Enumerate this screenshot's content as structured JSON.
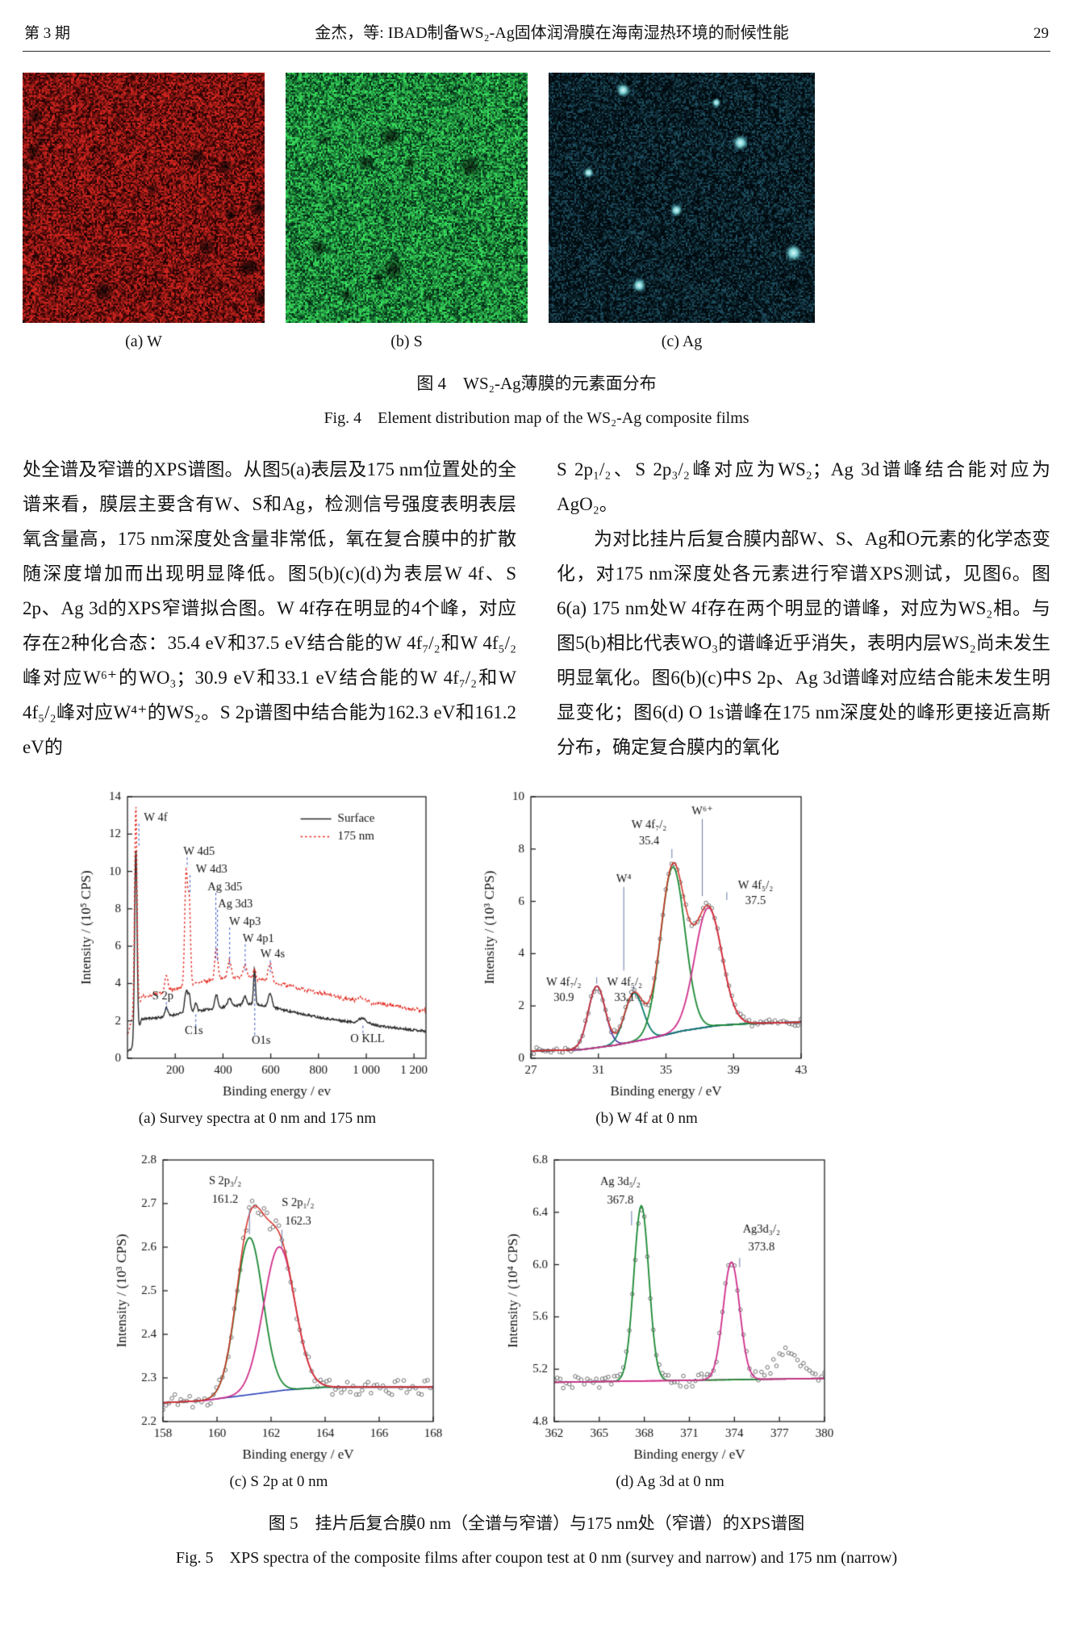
{
  "page": {
    "issue": "第 3 期",
    "running_title": "金杰，等: IBAD制备WS₂-Ag固体润滑膜在海南湿热环境的耐候性能",
    "page_number": "29"
  },
  "figure4": {
    "panels": [
      {
        "label": "(a) W",
        "kind": "red",
        "color": "#c03122",
        "dark_blobs": 16
      },
      {
        "label": "(b) S",
        "kind": "green",
        "color": "#35c152",
        "dark_blobs": 10
      },
      {
        "label": "(c) Ag",
        "kind": "cyan",
        "color": "#bdecef",
        "spots": [
          [
            0.28,
            0.07,
            9
          ],
          [
            0.63,
            0.12,
            6
          ],
          [
            0.72,
            0.28,
            10
          ],
          [
            0.15,
            0.4,
            7
          ],
          [
            0.48,
            0.55,
            8
          ],
          [
            0.92,
            0.72,
            11
          ],
          [
            0.34,
            0.85,
            9
          ]
        ]
      }
    ],
    "caption_zh": "图 4　WS₂-Ag薄膜的元素面分布",
    "caption_en": "Fig. 4　Element distribution map of the WS₂-Ag composite films"
  },
  "body": {
    "left_p1": "处全谱及窄谱的XPS谱图。从图5(a)表层及175 nm位置处的全谱来看，膜层主要含有W、S和Ag，检测信号强度表明表层氧含量高，175 nm深度处含量非常低，氧在复合膜中的扩散随深度增加而出现明显降低。图5(b)(c)(d)为表层W 4f、S 2p、Ag 3d的XPS窄谱拟合图。W 4f存在明显的4个峰，对应存在2种化合态：35.4 eV和37.5 eV结合能的W 4f₇/₂和W 4f₅/₂峰对应W⁶⁺的WO₃；30.9 eV和33.1 eV结合能的W 4f₇/₂和W 4f₅/₂峰对应W⁴⁺的WS₂。S 2p谱图中结合能为162.3 eV和161.2 eV的",
    "right_p1": "S 2p₁/₂、S 2p₃/₂峰对应为WS₂；Ag 3d谱峰结合能对应为AgO₂。",
    "right_p2": "为对比挂片后复合膜内部W、S、Ag和O元素的化学态变化，对175 nm深度处各元素进行窄谱XPS测试，见图6。图6(a) 175 nm处W 4f存在两个明显的谱峰，对应为WS₂相。与图5(b)相比代表WO₃的谱峰近乎消失，表明内层WS₂尚未发生明显氧化。图6(b)(c)中S 2p、Ag 3d谱峰对应结合能未发生明显变化；图6(d) O 1s谱峰在175 nm深度处的峰形更接近高斯分布，确定复合膜内的氧化"
  },
  "figure5": {
    "caption_zh": "图 5　挂片后复合膜0 nm（全谱与窄谱）与175 nm处（窄谱）的XPS谱图",
    "caption_en": "Fig. 5　XPS spectra of the composite films after coupon test at 0 nm (survey and narrow) and 175 nm (narrow)"
  },
  "chart_data": [
    {
      "id": "chart-a",
      "type": "line",
      "caption": "(a) Survey spectra at 0 nm and 175 nm",
      "xlabel": "Binding energy / ev",
      "ylabel": "Intensity / (10⁵ CPS)",
      "xlim": [
        0,
        1250
      ],
      "ylim": [
        0,
        14
      ],
      "xticks": [
        {
          "v": 200,
          "l": "200"
        },
        {
          "v": 400,
          "l": "400"
        },
        {
          "v": 600,
          "l": "600"
        },
        {
          "v": 800,
          "l": "800"
        },
        {
          "v": 1000,
          "l": "1 000"
        },
        {
          "v": 1200,
          "l": "1 200"
        }
      ],
      "yticks": [
        {
          "v": 0,
          "l": "0"
        },
        {
          "v": 2,
          "l": "2"
        },
        {
          "v": 4,
          "l": "4"
        },
        {
          "v": 6,
          "l": "6"
        },
        {
          "v": 8,
          "l": "8"
        },
        {
          "v": 10,
          "l": "10"
        },
        {
          "v": 12,
          "l": "12"
        },
        {
          "v": 14,
          "l": "14"
        }
      ],
      "legend": {
        "fx": 0.58,
        "fy": 0.06,
        "entries": [
          {
            "label": "Surface",
            "color": "#2b2b2b",
            "dash": "solid"
          },
          {
            "label": "175 nm",
            "color": "#e1251b",
            "dash": "dot"
          }
        ]
      },
      "series": [
        {
          "name": "Surface",
          "color": "#2b2b2b",
          "dash": "solid",
          "noise": 0.06,
          "seed": 11,
          "baseline": [
            [
              0,
              0.35
            ],
            [
              25,
              0.6
            ],
            [
              60,
              2.1
            ],
            [
              150,
              2.2
            ],
            [
              240,
              2.45
            ],
            [
              330,
              2.6
            ],
            [
              430,
              2.8
            ],
            [
              520,
              2.9
            ],
            [
              600,
              2.75
            ],
            [
              700,
              2.45
            ],
            [
              800,
              2.2
            ],
            [
              900,
              2.0
            ],
            [
              1000,
              1.85
            ],
            [
              1100,
              1.65
            ],
            [
              1250,
              1.45
            ]
          ],
          "peaks": [
            {
              "c": 35,
              "h": 10.2,
              "w": 5
            },
            {
              "c": 163,
              "h": 0.5,
              "w": 6
            },
            {
              "c": 246,
              "h": 1.15,
              "w": 6
            },
            {
              "c": 259,
              "h": 0.85,
              "w": 5
            },
            {
              "c": 286,
              "h": 0.45,
              "w": 5
            },
            {
              "c": 369,
              "h": 0.5,
              "w": 5
            },
            {
              "c": 376,
              "h": 0.4,
              "w": 5
            },
            {
              "c": 427,
              "h": 0.45,
              "w": 7
            },
            {
              "c": 492,
              "h": 0.42,
              "w": 7
            },
            {
              "c": 532,
              "h": 1.95,
              "w": 4
            },
            {
              "c": 597,
              "h": 0.7,
              "w": 8
            },
            {
              "c": 985,
              "h": 0.28,
              "w": 16
            }
          ]
        },
        {
          "name": "175 nm",
          "color": "#e1251b",
          "dash": "dot",
          "noise": 0.09,
          "seed": 22,
          "baseline": [
            [
              0,
              1.3
            ],
            [
              25,
              2.3
            ],
            [
              60,
              3.3
            ],
            [
              150,
              3.55
            ],
            [
              240,
              3.85
            ],
            [
              330,
              4.15
            ],
            [
              430,
              4.35
            ],
            [
              520,
              4.3
            ],
            [
              600,
              4.1
            ],
            [
              700,
              3.8
            ],
            [
              800,
              3.5
            ],
            [
              900,
              3.2
            ],
            [
              1000,
              3.0
            ],
            [
              1100,
              2.8
            ],
            [
              1250,
              2.55
            ]
          ],
          "peaks": [
            {
              "c": 35,
              "h": 11.0,
              "w": 5
            },
            {
              "c": 163,
              "h": 0.9,
              "w": 6
            },
            {
              "c": 246,
              "h": 6.2,
              "w": 6
            },
            {
              "c": 259,
              "h": 4.2,
              "w": 5
            },
            {
              "c": 369,
              "h": 1.15,
              "w": 5
            },
            {
              "c": 376,
              "h": 0.95,
              "w": 5
            },
            {
              "c": 427,
              "h": 0.85,
              "w": 7
            },
            {
              "c": 492,
              "h": 0.7,
              "w": 7
            },
            {
              "c": 532,
              "h": 0.55,
              "w": 5
            },
            {
              "c": 597,
              "h": 0.95,
              "w": 8
            },
            {
              "c": 985,
              "h": 0.22,
              "w": 16
            }
          ]
        }
      ],
      "ann_color": "#3a57c8",
      "ann_dash": "dot",
      "annotations": [
        {
          "text": "W 4f",
          "x": 118,
          "y": 12.85
        },
        {
          "text": "W 4d5",
          "x": 300,
          "y": 11.05
        },
        {
          "text": "W 4d3",
          "x": 352,
          "y": 10.1
        },
        {
          "text": "Ag 3d5",
          "x": 408,
          "y": 9.15
        },
        {
          "text": "Ag 3d3",
          "x": 452,
          "y": 8.25
        },
        {
          "text": "W 4p3",
          "x": 492,
          "y": 7.3
        },
        {
          "text": "W 4p1",
          "x": 548,
          "y": 6.4
        },
        {
          "text": "W 4s",
          "x": 608,
          "y": 5.55
        },
        {
          "text": "S 2p",
          "x": 148,
          "y": 3.3
        },
        {
          "text": "C1s",
          "x": 278,
          "y": 1.45
        },
        {
          "text": "O1s",
          "x": 560,
          "y": 0.95
        },
        {
          "text": "O KLL",
          "x": 1005,
          "y": 1.05
        }
      ],
      "ann_lines": [
        [
          48,
          12.55,
          48,
          11.3
        ],
        [
          250,
          10.75,
          250,
          10.2
        ],
        [
          262,
          9.8,
          262,
          8.8
        ],
        [
          370,
          8.85,
          370,
          5.35
        ],
        [
          377,
          7.95,
          377,
          5.15
        ],
        [
          428,
          7.0,
          428,
          4.85
        ],
        [
          493,
          6.1,
          493,
          4.65
        ],
        [
          598,
          5.25,
          598,
          4.45
        ],
        [
          163,
          3.0,
          163,
          2.6
        ],
        [
          286,
          1.7,
          286,
          2.45
        ],
        [
          533,
          1.25,
          533,
          4.3
        ],
        [
          986,
          1.35,
          986,
          1.8
        ]
      ]
    },
    {
      "id": "chart-b",
      "type": "scatter",
      "caption": "(b) W 4f at 0 nm",
      "xlabel": "Binding energy / eV",
      "ylabel": "Intensity / (10³ CPS)",
      "xlim": [
        27,
        43
      ],
      "ylim": [
        0,
        10
      ],
      "xticks": [
        {
          "v": 27,
          "l": "27"
        },
        {
          "v": 31,
          "l": "31"
        },
        {
          "v": 35,
          "l": "35"
        },
        {
          "v": 39,
          "l": "39"
        },
        {
          "v": 43,
          "l": "43"
        }
      ],
      "yticks": [
        {
          "v": 0,
          "l": "0"
        },
        {
          "v": 2,
          "l": "2"
        },
        {
          "v": 4,
          "l": "4"
        },
        {
          "v": 6,
          "l": "6"
        },
        {
          "v": 8,
          "l": "8"
        },
        {
          "v": 10,
          "l": "10"
        }
      ],
      "baseline": {
        "color": "#2a3fb8",
        "points": [
          [
            27,
            0.28
          ],
          [
            30,
            0.33
          ],
          [
            32,
            0.5
          ],
          [
            34,
            0.75
          ],
          [
            36,
            1.05
          ],
          [
            38,
            1.25
          ],
          [
            40,
            1.33
          ],
          [
            43,
            1.38
          ]
        ]
      },
      "components": [
        {
          "name": "W 4f₇/₂ (W⁴⁺)",
          "center": 30.9,
          "height": 2.35,
          "width": 0.5,
          "color": "#5b3da8"
        },
        {
          "name": "W 4f₅/₂ (W⁴⁺)",
          "center": 33.1,
          "height": 1.85,
          "width": 0.55,
          "color": "#0e7d6e"
        },
        {
          "name": "W 4f₇/₂ (W⁶⁺)",
          "center": 35.4,
          "height": 6.35,
          "width": 0.72,
          "color": "#1b8a34"
        },
        {
          "name": "W 4f₅/₂ (W⁶⁺)",
          "center": 37.5,
          "height": 4.55,
          "width": 0.8,
          "color": "#d0308c"
        }
      ],
      "envelope_color": "#d53026",
      "scatter": {
        "step": 0.17,
        "noise": 0.13,
        "seed": 7,
        "color": "#707070"
      },
      "ann_color": "#6b7aa8",
      "ann_dash": "solid",
      "annotations": [
        {
          "text": "W⁶⁺",
          "x": 37.15,
          "y": 9.45
        },
        {
          "text": "W 4f₇/₂",
          "x": 34.0,
          "y": 8.9
        },
        {
          "text": "35.4",
          "x": 34.0,
          "y": 8.3
        },
        {
          "text": "W 4f₅/₂",
          "x": 40.3,
          "y": 6.6
        },
        {
          "text": "37.5",
          "x": 40.3,
          "y": 6.0
        },
        {
          "text": "W⁴",
          "x": 32.5,
          "y": 6.85
        },
        {
          "text": "W 4f₇/₂",
          "x": 28.95,
          "y": 2.9
        },
        {
          "text": "30.9",
          "x": 28.95,
          "y": 2.3
        },
        {
          "text": "W 4f₅/₂",
          "x": 32.55,
          "y": 2.9
        },
        {
          "text": "33.1",
          "x": 32.55,
          "y": 2.3
        }
      ],
      "ann_lines": [
        [
          37.15,
          9.15,
          37.15,
          6.2
        ],
        [
          35.35,
          8.0,
          35.35,
          7.65
        ],
        [
          38.6,
          6.35,
          38.6,
          6.05
        ],
        [
          32.5,
          6.55,
          32.5,
          3.35
        ],
        [
          30.9,
          3.1,
          30.9,
          2.85
        ],
        [
          33.1,
          2.75,
          33.1,
          2.55
        ]
      ]
    },
    {
      "id": "chart-c",
      "type": "scatter",
      "caption": "(c) S 2p at 0 nm",
      "xlabel": "Binding energy / eV",
      "ylabel": "Intensity / (10³ CPS)",
      "xlim": [
        158,
        168
      ],
      "ylim": [
        2.2,
        2.8
      ],
      "xticks": [
        {
          "v": 158,
          "l": "158"
        },
        {
          "v": 160,
          "l": "160"
        },
        {
          "v": 162,
          "l": "162"
        },
        {
          "v": 164,
          "l": "164"
        },
        {
          "v": 166,
          "l": "166"
        },
        {
          "v": 168,
          "l": "168"
        }
      ],
      "yticks": [
        {
          "v": 2.2,
          "l": "2.2"
        },
        {
          "v": 2.3,
          "l": "2.3"
        },
        {
          "v": 2.4,
          "l": "2.4"
        },
        {
          "v": 2.5,
          "l": "2.5"
        },
        {
          "v": 2.6,
          "l": "2.6"
        },
        {
          "v": 2.7,
          "l": "2.7"
        },
        {
          "v": 2.8,
          "l": "2.8"
        }
      ],
      "baseline": {
        "color": "#2a3fb8",
        "points": [
          [
            158,
            2.243
          ],
          [
            159.5,
            2.248
          ],
          [
            161,
            2.26
          ],
          [
            162.5,
            2.272
          ],
          [
            164,
            2.279
          ],
          [
            168,
            2.279
          ]
        ]
      },
      "components": [
        {
          "name": "S 2p₃/₂",
          "center": 161.2,
          "height": 0.36,
          "width": 0.5,
          "color": "#1b8a34"
        },
        {
          "name": "S 2p₁/₂",
          "center": 162.3,
          "height": 0.33,
          "width": 0.58,
          "color": "#d0308c"
        }
      ],
      "envelope_color": "#d53026",
      "scatter": {
        "step": 0.11,
        "noise": 0.018,
        "seed": 19,
        "color": "#707070"
      },
      "ann_color": "#6b7aa8",
      "ann_dash": "solid",
      "annotations": [
        {
          "text": "S 2p₃/₂",
          "x": 160.3,
          "y": 2.752
        },
        {
          "text": "161.2",
          "x": 160.3,
          "y": 2.709
        },
        {
          "text": "S 2p₁/₂",
          "x": 163.0,
          "y": 2.702
        },
        {
          "text": "162.3",
          "x": 163.0,
          "y": 2.659
        }
      ],
      "ann_lines": [
        [
          161.2,
          2.688,
          161.2,
          2.63
        ],
        [
          162.4,
          2.64,
          162.4,
          2.6
        ]
      ]
    },
    {
      "id": "chart-d",
      "type": "scatter",
      "caption": "(d) Ag 3d at 0 nm",
      "xlabel": "Binding energy / eV",
      "ylabel": "Intensity / (10⁴ CPS)",
      "xlim": [
        362,
        380
      ],
      "ylim": [
        4.8,
        6.8
      ],
      "xticks": [
        {
          "v": 362,
          "l": "362"
        },
        {
          "v": 365,
          "l": "365"
        },
        {
          "v": 368,
          "l": "368"
        },
        {
          "v": 371,
          "l": "371"
        },
        {
          "v": 374,
          "l": "374"
        },
        {
          "v": 377,
          "l": "377"
        },
        {
          "v": 380,
          "l": "380"
        }
      ],
      "yticks": [
        {
          "v": 4.8,
          "l": "4.8"
        },
        {
          "v": 5.2,
          "l": "5.2"
        },
        {
          "v": 5.6,
          "l": "5.6"
        },
        {
          "v": 6.0,
          "l": "6.0"
        },
        {
          "v": 6.4,
          "l": "6.4"
        },
        {
          "v": 6.8,
          "l": "6.8"
        }
      ],
      "baseline": {
        "color": "#d0308c",
        "points": [
          [
            362,
            5.1
          ],
          [
            380,
            5.13
          ]
        ]
      },
      "components": [
        {
          "name": "Ag 3d₅/₂",
          "center": 367.8,
          "height": 1.34,
          "width": 0.5,
          "color": "#1b8a34"
        },
        {
          "name": "Ag 3d₃/₂",
          "center": 373.8,
          "height": 0.9,
          "width": 0.55,
          "color": "#d0308c"
        }
      ],
      "scatter": {
        "step": 0.2,
        "noise": 0.05,
        "seed": 31,
        "color": "#707070"
      },
      "scatter_bumps": [
        {
          "center": 377.6,
          "height": 0.2,
          "width": 0.9
        }
      ],
      "ann_color": "#6b7aa8",
      "ann_dash": "solid",
      "annotations": [
        {
          "text": "Ag 3d₅/₂",
          "x": 366.4,
          "y": 6.63
        },
        {
          "text": "367.8",
          "x": 366.4,
          "y": 6.49
        },
        {
          "text": "Ag3d₃/₂",
          "x": 375.8,
          "y": 6.27
        },
        {
          "text": "373.8",
          "x": 375.8,
          "y": 6.13
        }
      ],
      "ann_lines": [
        [
          367.15,
          6.41,
          367.15,
          6.3
        ],
        [
          374.35,
          6.05,
          374.35,
          5.98
        ]
      ]
    }
  ]
}
